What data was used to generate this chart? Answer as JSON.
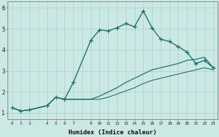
{
  "xlabel": "Humidex (Indice chaleur)",
  "ylabel": "",
  "background_color": "#cbe8e5",
  "grid_color": "#a8d5d1",
  "line_color": "#1a6e65",
  "xlim": [
    -0.5,
    23.5
  ],
  "ylim": [
    0.7,
    6.3
  ],
  "xticks": [
    0,
    1,
    2,
    4,
    5,
    6,
    7,
    9,
    10,
    11,
    12,
    13,
    14,
    15,
    16,
    17,
    18,
    19,
    20,
    21,
    22,
    23
  ],
  "yticks": [
    1,
    2,
    3,
    4,
    5,
    6
  ],
  "series": [
    {
      "x": [
        0,
        1,
        2,
        4,
        5,
        6,
        7,
        9,
        10,
        11,
        12,
        13,
        14,
        15,
        16,
        17,
        18,
        19,
        20,
        21,
        22,
        23
      ],
      "y": [
        1.25,
        1.1,
        1.15,
        1.35,
        1.75,
        1.65,
        2.45,
        4.45,
        4.95,
        4.9,
        5.05,
        5.25,
        5.1,
        5.85,
        5.05,
        4.5,
        4.4,
        4.15,
        3.9,
        3.35,
        3.5,
        3.15
      ],
      "marker": "+",
      "linewidth": 1.0,
      "markersize": 4
    },
    {
      "x": [
        0,
        1,
        2,
        4,
        5,
        6,
        7,
        9,
        10,
        11,
        12,
        13,
        14,
        15,
        16,
        17,
        18,
        19,
        20,
        21,
        22,
        23
      ],
      "y": [
        1.25,
        1.1,
        1.15,
        1.35,
        1.75,
        1.65,
        1.65,
        1.65,
        1.8,
        2.0,
        2.2,
        2.45,
        2.65,
        2.85,
        3.05,
        3.15,
        3.25,
        3.35,
        3.5,
        3.55,
        3.65,
        3.15
      ],
      "marker": "None",
      "linewidth": 0.9,
      "markersize": 0
    },
    {
      "x": [
        0,
        1,
        2,
        4,
        5,
        6,
        7,
        9,
        10,
        11,
        12,
        13,
        14,
        15,
        16,
        17,
        18,
        19,
        20,
        21,
        22,
        23
      ],
      "y": [
        1.25,
        1.1,
        1.15,
        1.35,
        1.75,
        1.65,
        1.65,
        1.65,
        1.65,
        1.75,
        1.9,
        2.05,
        2.2,
        2.4,
        2.55,
        2.65,
        2.75,
        2.85,
        2.95,
        3.05,
        3.15,
        3.05
      ],
      "marker": "None",
      "linewidth": 0.8,
      "markersize": 0
    }
  ]
}
